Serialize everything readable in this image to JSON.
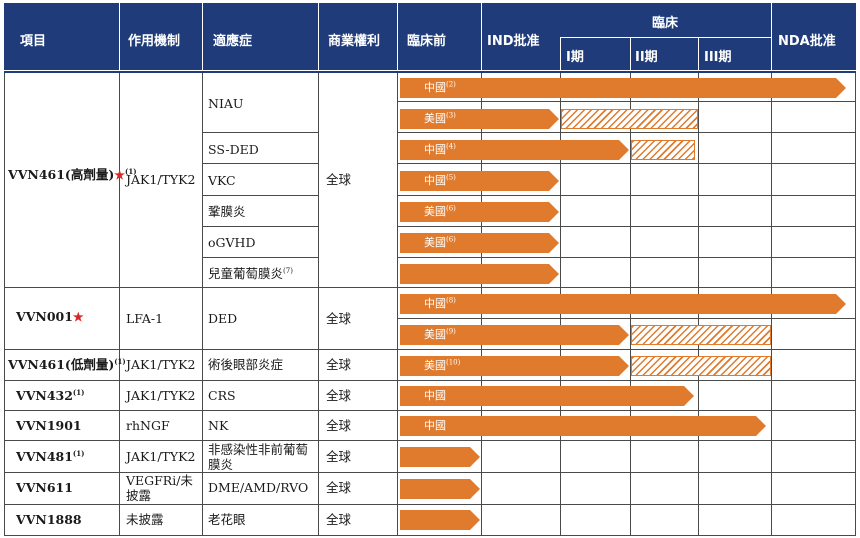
{
  "headers": {
    "project": "項目",
    "mechanism": "作用機制",
    "indication": "適應症",
    "rights": "商業權利",
    "preclinical": "臨床前",
    "ind": "IND批准",
    "clinical": "臨床",
    "phase1": "I期",
    "phase2": "II期",
    "phase3": "III期",
    "nda": "NDA批准"
  },
  "rows": [
    {
      "project": "VVN461(高劑量)",
      "note": "(1)",
      "star": "★",
      "mechanism": "JAK1/TYK2",
      "rights": "全球",
      "indications": [
        {
          "name": "NIAU",
          "note": "",
          "bars": [
            {
              "label": "中國",
              "note": "(2)",
              "stage_end": 5.9
            },
            {
              "label": "美國",
              "note": "(3)",
              "stage_end": 2.0,
              "hatch_end": 4.0
            }
          ]
        },
        {
          "name": "SS-DED",
          "note": "",
          "bars": [
            {
              "label": "中國",
              "note": "(4)",
              "stage_end": 3.0,
              "hatch_end": 3.95
            }
          ]
        },
        {
          "name": "VKC",
          "note": "",
          "bars": [
            {
              "label": "中國",
              "note": "(5)",
              "stage_end": 2.0
            }
          ]
        },
        {
          "name": "鞏膜炎",
          "note": "",
          "bars": [
            {
              "label": "美國",
              "note": "(6)",
              "stage_end": 2.0
            }
          ]
        },
        {
          "name": "oGVHD",
          "note": "",
          "bars": [
            {
              "label": "美國",
              "note": "(6)",
              "stage_end": 2.0
            }
          ]
        },
        {
          "name": "兒童葡萄膜炎",
          "note": "(7)",
          "bars": [
            {
              "label": "",
              "note": "",
              "stage_end": 2.0
            }
          ]
        }
      ]
    },
    {
      "project": "VVN001",
      "note": "",
      "star": "★",
      "mechanism": "LFA-1",
      "rights": "全球",
      "indications": [
        {
          "name": "DED",
          "note": "",
          "bars": [
            {
              "label": "中國",
              "note": "(8)",
              "stage_end": 5.9
            },
            {
              "label": "美國",
              "note": "(9)",
              "stage_end": 3.0,
              "hatch_end": 5.0
            }
          ]
        }
      ]
    },
    {
      "project": "VVN461(低劑量)",
      "note": "(1)",
      "star": "",
      "mechanism": "JAK1/TYK2",
      "rights": "全球",
      "indications": [
        {
          "name": "術後眼部炎症",
          "note": "",
          "bars": [
            {
              "label": "美國",
              "note": "(10)",
              "stage_end": 3.0,
              "hatch_end": 5.0
            }
          ]
        }
      ]
    },
    {
      "project": "VVN432",
      "note": "(1)",
      "star": "",
      "mechanism": "JAK1/TYK2",
      "rights": "全球",
      "indications": [
        {
          "name": "CRS",
          "note": "",
          "bars": [
            {
              "label": "中國",
              "note": "",
              "stage_end": 3.95
            }
          ]
        }
      ]
    },
    {
      "project": "VVN1901",
      "note": "",
      "star": "",
      "mechanism": "rhNGF",
      "rights": "全球",
      "indications": [
        {
          "name": "NK",
          "note": "",
          "bars": [
            {
              "label": "中國",
              "note": "",
              "stage_end": 4.95
            }
          ]
        }
      ]
    },
    {
      "project": "VVN481",
      "note": "(1)",
      "star": "",
      "mechanism": "JAK1/TYK2",
      "rights": "全球",
      "indications": [
        {
          "name": "非感染性非前葡萄膜炎",
          "note": "",
          "bars": [
            {
              "label": "",
              "note": "",
              "stage_end": 1.0
            }
          ]
        }
      ]
    },
    {
      "project": "VVN611",
      "note": "",
      "star": "",
      "mechanism": "VEGFRi/未披露",
      "rights": "全球",
      "indications": [
        {
          "name": "DME/AMD/RVO",
          "note": "",
          "bars": [
            {
              "label": "",
              "note": "",
              "stage_end": 1.0
            }
          ]
        }
      ]
    },
    {
      "project": "VVN1888",
      "note": "",
      "star": "",
      "mechanism": "未披露",
      "rights": "全球",
      "indications": [
        {
          "name": "老花眼",
          "note": "",
          "bars": [
            {
              "label": "",
              "note": "",
              "stage_end": 1.0
            }
          ]
        }
      ]
    }
  ],
  "colors": {
    "header": "#1f3b7a",
    "bar": "#e07a2c",
    "star": "#d62828"
  }
}
